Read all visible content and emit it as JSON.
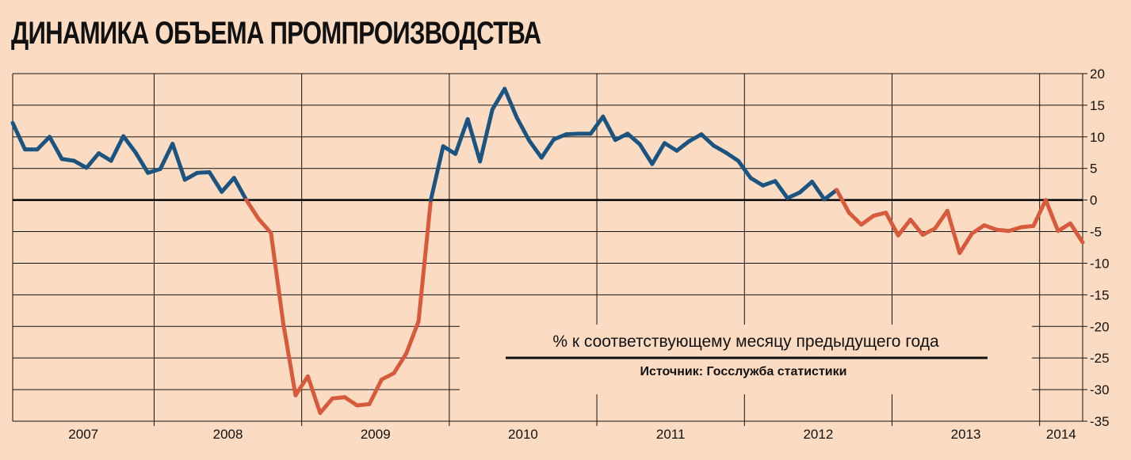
{
  "title": "ДИНАМИКА ОБЪЕМА ПРОМПРОИЗВОДСТВА",
  "note": "% к соответствующему месяцу предыдущего года",
  "source": "Источник: Госслужба статистики",
  "colors": {
    "background": "#fbdcc3",
    "positive": "#1b5480",
    "negative": "#d85a3c",
    "zero_line": "#000000",
    "grid": "#111111"
  },
  "chart_data": {
    "type": "line",
    "title": "ДИНАМИКА ОБЪЕМА ПРОМПРОИЗВОДСТВА",
    "xlabel": "",
    "ylabel": "",
    "ylim": [
      -35,
      20
    ],
    "yticks": [
      20,
      15,
      10,
      5,
      0,
      -5,
      -10,
      -15,
      -20,
      -25,
      -30,
      -35
    ],
    "year_labels": [
      "2007",
      "2008",
      "2009",
      "2010",
      "2011",
      "2012",
      "2013",
      "2014"
    ],
    "annotations": [
      "% к соответствующему месяцу предыдущего года",
      "Источник: Госслужба статистики"
    ],
    "legend": "none",
    "grid": true,
    "x_start": "2007-01",
    "series": [
      {
        "values": [
          12.2,
          8.0,
          8.0,
          10.0,
          6.5,
          6.2,
          5.1,
          7.4,
          6.2,
          10.1,
          7.5,
          4.3,
          4.9,
          8.9,
          3.2,
          4.3,
          4.4,
          1.3,
          3.5,
          0,
          -3.0,
          -5.2,
          -19.5,
          -30.9,
          -27.9,
          -33.7,
          -31.4,
          -31.2,
          -32.5,
          -32.3,
          -28.4,
          -27.4,
          -24.3,
          -19.2,
          0,
          8.5,
          7.3,
          12.8,
          6.1,
          14.3,
          17.6,
          13.0,
          9.4,
          6.7,
          9.6,
          10.4,
          10.5,
          10.5,
          13.2,
          9.5,
          10.5,
          8.8,
          5.7,
          9.0,
          7.8,
          9.3,
          10.4,
          8.6,
          7.5,
          6.2,
          3.5,
          2.3,
          3.0,
          0.3,
          1.2,
          2.9,
          0.1,
          1.6,
          -2.0,
          -3.9,
          -2.5,
          -2.0,
          -5.6,
          -3.1,
          -5.5,
          -4.5,
          -1.7,
          -8.4,
          -5.3,
          -4.0,
          -4.7,
          -4.9,
          -4.3,
          -4.1,
          0,
          -4.9,
          -3.7,
          -6.7
        ]
      }
    ]
  }
}
